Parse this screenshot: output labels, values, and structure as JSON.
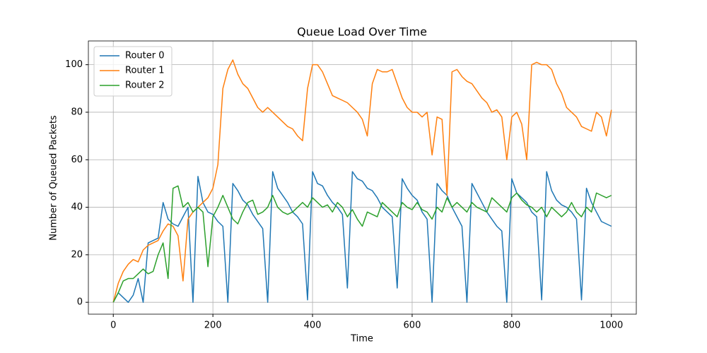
{
  "chart_data": {
    "type": "line",
    "title": "Queue Load Over Time",
    "x_label": "Time",
    "y_label": "Number of Queued Packets",
    "x": [
      0,
      10,
      20,
      30,
      40,
      50,
      60,
      70,
      80,
      90,
      100,
      110,
      120,
      130,
      140,
      150,
      160,
      170,
      180,
      190,
      200,
      210,
      220,
      230,
      240,
      250,
      260,
      270,
      280,
      290,
      300,
      310,
      320,
      330,
      340,
      350,
      360,
      370,
      380,
      390,
      400,
      410,
      420,
      430,
      440,
      450,
      460,
      470,
      480,
      490,
      500,
      510,
      520,
      530,
      540,
      550,
      560,
      570,
      580,
      590,
      600,
      610,
      620,
      630,
      640,
      650,
      660,
      670,
      680,
      690,
      700,
      710,
      720,
      730,
      740,
      750,
      760,
      770,
      780,
      790,
      800,
      810,
      820,
      830,
      840,
      850,
      860,
      870,
      880,
      890,
      900,
      910,
      920,
      930,
      940,
      950,
      960,
      970,
      980,
      990,
      1000
    ],
    "series": [
      {
        "name": "Router 0",
        "color": "#1f77b4",
        "values": [
          0,
          4,
          2,
          0,
          3,
          10,
          0,
          25,
          26,
          27,
          42,
          35,
          33,
          32,
          36,
          40,
          0,
          53,
          42,
          38,
          37,
          34,
          32,
          0,
          50,
          47,
          43,
          41,
          37,
          34,
          31,
          0,
          55,
          48,
          45,
          42,
          38,
          36,
          33,
          1,
          55,
          50,
          49,
          45,
          42,
          40,
          37,
          6,
          55,
          52,
          51,
          48,
          47,
          44,
          40,
          38,
          36,
          6,
          52,
          48,
          45,
          43,
          38,
          35,
          0,
          50,
          47,
          45,
          40,
          36,
          32,
          0,
          50,
          46,
          42,
          38,
          35,
          32,
          30,
          0,
          52,
          46,
          44,
          42,
          38,
          36,
          1,
          55,
          47,
          43,
          41,
          40,
          38,
          35,
          1,
          48,
          42,
          38,
          34,
          33,
          32
        ]
      },
      {
        "name": "Router 1",
        "color": "#ff7f0e",
        "values": [
          0,
          8,
          13,
          16,
          18,
          17,
          22,
          24,
          25,
          26,
          30,
          33,
          32,
          28,
          9,
          35,
          38,
          40,
          42,
          44,
          48,
          58,
          90,
          98,
          102,
          96,
          92,
          90,
          86,
          82,
          80,
          82,
          80,
          78,
          76,
          74,
          73,
          70,
          68,
          90,
          100,
          100,
          97,
          92,
          87,
          86,
          85,
          84,
          82,
          80,
          77,
          70,
          92,
          98,
          97,
          97,
          98,
          92,
          86,
          82,
          80,
          80,
          78,
          80,
          62,
          78,
          77,
          45,
          97,
          98,
          95,
          93,
          92,
          89,
          86,
          84,
          80,
          81,
          78,
          60,
          78,
          80,
          75,
          60,
          100,
          101,
          100,
          100,
          98,
          92,
          88,
          82,
          80,
          78,
          74,
          73,
          72,
          80,
          78,
          70,
          81
        ]
      },
      {
        "name": "Router 2",
        "color": "#2ca02c",
        "values": [
          0,
          4,
          9,
          10,
          10,
          12,
          14,
          12,
          13,
          20,
          25,
          10,
          48,
          49,
          40,
          42,
          38,
          40,
          38,
          15,
          36,
          40,
          45,
          40,
          35,
          33,
          38,
          42,
          43,
          37,
          38,
          40,
          45,
          40,
          38,
          37,
          38,
          40,
          42,
          40,
          44,
          42,
          40,
          41,
          38,
          42,
          40,
          36,
          39,
          35,
          32,
          38,
          37,
          36,
          42,
          40,
          38,
          36,
          42,
          40,
          39,
          42,
          39,
          38,
          35,
          40,
          38,
          44,
          40,
          42,
          40,
          38,
          42,
          40,
          39,
          38,
          44,
          42,
          40,
          38,
          44,
          46,
          43,
          41,
          40,
          38,
          40,
          36,
          40,
          38,
          36,
          38,
          42,
          38,
          36,
          40,
          38,
          46,
          45,
          44,
          45
        ]
      }
    ],
    "xlim": [
      -50,
      1050
    ],
    "ylim": [
      -5,
      110
    ],
    "xticks": [
      0,
      200,
      400,
      600,
      800,
      1000
    ],
    "yticks": [
      0,
      20,
      40,
      60,
      80,
      100
    ],
    "grid": true,
    "legend": "upper-left"
  }
}
